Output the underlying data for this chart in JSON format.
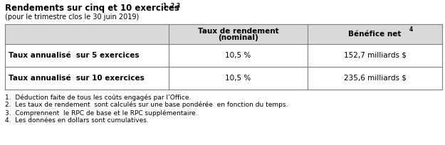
{
  "title_main": "Rendements sur cinq et 10 exercices",
  "title_sup": "1, 2,3",
  "subtitle": "(pour le trimestre clos le 30 juin 2019)",
  "col_headers_line1": [
    "Taux de rendement",
    "Bénéfice net"
  ],
  "col_headers_line2": [
    "(nominal)",
    ""
  ],
  "col2_sup": "4",
  "row_labels": [
    "Taux annualisé  sur 5 exercices",
    "Taux annualisé  sur 10 exercices"
  ],
  "col1_values": [
    "10,5 %",
    "10,5 %"
  ],
  "col2_values": [
    "152,7 milliards $",
    "235,6 milliards $"
  ],
  "footnotes": [
    "1.  Déduction faite de tous les coûts engagés par l’Office.",
    "2.  Les taux de rendement  sont calculés sur une base pondérée  en fonction du temps.",
    "3.  Comprennent  le RPC de base et le RPC supplémentaire.",
    "4.  Les données en dollars sont cumulatives."
  ],
  "header_bg": "#d9d9d9",
  "border_color": "#7f7f7f",
  "text_color": "#000000",
  "fig_bg": "#ffffff"
}
